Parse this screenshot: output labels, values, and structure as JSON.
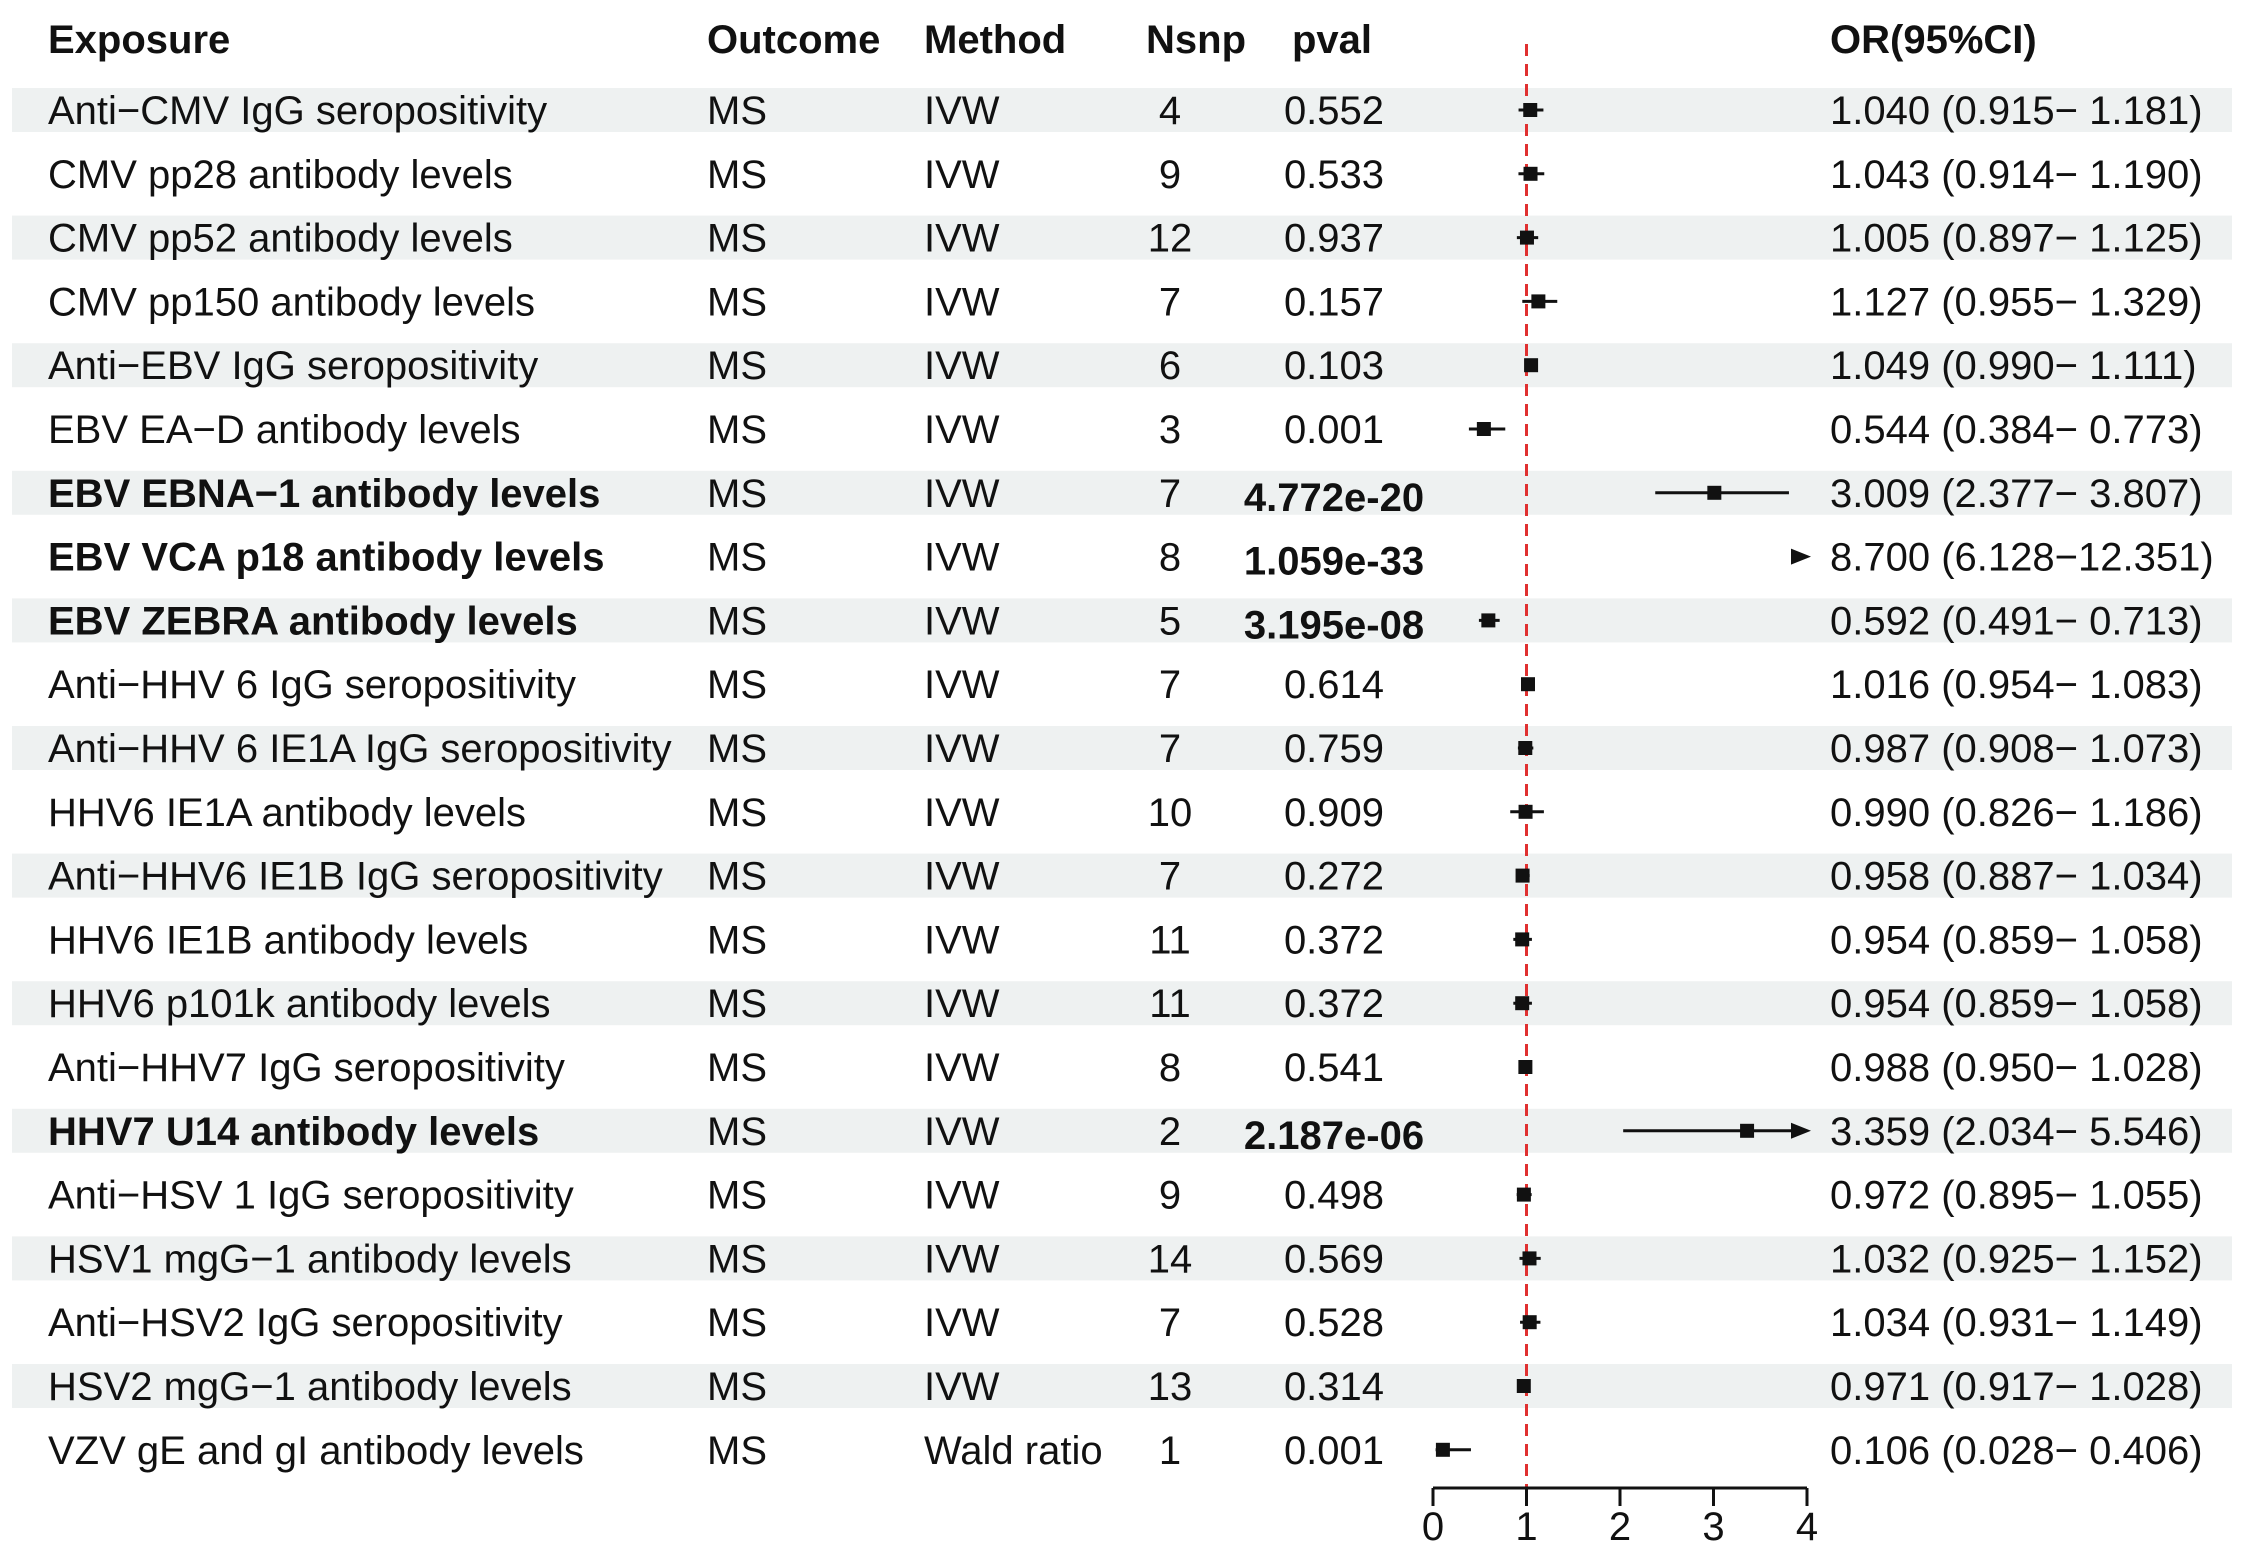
{
  "chart_data": {
    "type": "forest",
    "headers": {
      "exposure": "Exposure",
      "outcome": "Outcome",
      "method": "Method",
      "nsnp": "Nsnp",
      "pval": "pval",
      "or": "OR(95%CI)"
    },
    "reference_line": 1,
    "xlim": [
      0,
      4
    ],
    "x_ticks": [
      "0",
      "1",
      "2",
      "3",
      "4"
    ],
    "colors": {
      "stripe": "#eef1f1",
      "reference": "#e03030",
      "ink": "#111111"
    },
    "rows": [
      {
        "exposure": "Anti−CMV IgG seropositivity",
        "outcome": "MS",
        "method": "IVW",
        "nsnp": "4",
        "pval": "0.552",
        "bold": false,
        "or": 1.04,
        "lo": 0.915,
        "hi": 1.181,
        "or_text": "1.040 (0.915− 1.181)"
      },
      {
        "exposure": "CMV pp28 antibody levels",
        "outcome": "MS",
        "method": "IVW",
        "nsnp": "9",
        "pval": "0.533",
        "bold": false,
        "or": 1.043,
        "lo": 0.914,
        "hi": 1.19,
        "or_text": "1.043 (0.914− 1.190)"
      },
      {
        "exposure": "CMV pp52 antibody levels",
        "outcome": "MS",
        "method": "IVW",
        "nsnp": "12",
        "pval": "0.937",
        "bold": false,
        "or": 1.005,
        "lo": 0.897,
        "hi": 1.125,
        "or_text": "1.005 (0.897− 1.125)"
      },
      {
        "exposure": "CMV pp150 antibody levels",
        "outcome": "MS",
        "method": "IVW",
        "nsnp": "7",
        "pval": "0.157",
        "bold": false,
        "or": 1.127,
        "lo": 0.955,
        "hi": 1.329,
        "or_text": "1.127 (0.955− 1.329)"
      },
      {
        "exposure": "Anti−EBV IgG seropositivity",
        "outcome": "MS",
        "method": "IVW",
        "nsnp": "6",
        "pval": "0.103",
        "bold": false,
        "or": 1.049,
        "lo": 0.99,
        "hi": 1.111,
        "or_text": "1.049 (0.990− 1.111)"
      },
      {
        "exposure": "EBV EA−D antibody levels",
        "outcome": "MS",
        "method": "IVW",
        "nsnp": "3",
        "pval": "0.001",
        "bold": false,
        "or": 0.544,
        "lo": 0.384,
        "hi": 0.773,
        "or_text": "0.544 (0.384− 0.773)"
      },
      {
        "exposure": "EBV EBNA−1 antibody levels",
        "outcome": "MS",
        "method": "IVW",
        "nsnp": "7",
        "pval": "4.772e-20",
        "bold": true,
        "or": 3.009,
        "lo": 2.377,
        "hi": 3.807,
        "or_text": "3.009 (2.377− 3.807)"
      },
      {
        "exposure": "EBV VCA p18 antibody levels",
        "outcome": "MS",
        "method": "IVW",
        "nsnp": "8",
        "pval": "1.059e-33",
        "bold": true,
        "or": 8.7,
        "lo": 6.128,
        "hi": 12.351,
        "or_text": "8.700 (6.128−12.351)"
      },
      {
        "exposure": "EBV ZEBRA antibody levels",
        "outcome": "MS",
        "method": "IVW",
        "nsnp": "5",
        "pval": "3.195e-08",
        "bold": true,
        "or": 0.592,
        "lo": 0.491,
        "hi": 0.713,
        "or_text": "0.592 (0.491− 0.713)"
      },
      {
        "exposure": "Anti−HHV 6 IgG seropositivity",
        "outcome": "MS",
        "method": "IVW",
        "nsnp": "7",
        "pval": "0.614",
        "bold": false,
        "or": 1.016,
        "lo": 0.954,
        "hi": 1.083,
        "or_text": "1.016 (0.954− 1.083)"
      },
      {
        "exposure": "Anti−HHV 6 IE1A IgG seropositivity",
        "outcome": "MS",
        "method": "IVW",
        "nsnp": "7",
        "pval": "0.759",
        "bold": false,
        "or": 0.987,
        "lo": 0.908,
        "hi": 1.073,
        "or_text": "0.987 (0.908− 1.073)"
      },
      {
        "exposure": "HHV6 IE1A antibody levels",
        "outcome": "MS",
        "method": "IVW",
        "nsnp": "10",
        "pval": "0.909",
        "bold": false,
        "or": 0.99,
        "lo": 0.826,
        "hi": 1.186,
        "or_text": "0.990 (0.826− 1.186)"
      },
      {
        "exposure": "Anti−HHV6 IE1B IgG seropositivity",
        "outcome": "MS",
        "method": "IVW",
        "nsnp": "7",
        "pval": "0.272",
        "bold": false,
        "or": 0.958,
        "lo": 0.887,
        "hi": 1.034,
        "or_text": "0.958 (0.887− 1.034)"
      },
      {
        "exposure": "HHV6 IE1B antibody levels",
        "outcome": "MS",
        "method": "IVW",
        "nsnp": "11",
        "pval": "0.372",
        "bold": false,
        "or": 0.954,
        "lo": 0.859,
        "hi": 1.058,
        "or_text": "0.954 (0.859− 1.058)"
      },
      {
        "exposure": "HHV6 p101k antibody levels",
        "outcome": "MS",
        "method": "IVW",
        "nsnp": "11",
        "pval": "0.372",
        "bold": false,
        "or": 0.954,
        "lo": 0.859,
        "hi": 1.058,
        "or_text": "0.954 (0.859− 1.058)"
      },
      {
        "exposure": "Anti−HHV7 IgG seropositivity",
        "outcome": "MS",
        "method": "IVW",
        "nsnp": "8",
        "pval": "0.541",
        "bold": false,
        "or": 0.988,
        "lo": 0.95,
        "hi": 1.028,
        "or_text": "0.988 (0.950− 1.028)"
      },
      {
        "exposure": "HHV7 U14 antibody levels",
        "outcome": "MS",
        "method": "IVW",
        "nsnp": "2",
        "pval": "2.187e-06",
        "bold": true,
        "or": 3.359,
        "lo": 2.034,
        "hi": 5.546,
        "or_text": "3.359 (2.034− 5.546)"
      },
      {
        "exposure": "Anti−HSV 1 IgG seropositivity",
        "outcome": "MS",
        "method": "IVW",
        "nsnp": "9",
        "pval": "0.498",
        "bold": false,
        "or": 0.972,
        "lo": 0.895,
        "hi": 1.055,
        "or_text": "0.972 (0.895− 1.055)"
      },
      {
        "exposure": "HSV1 mgG−1 antibody levels",
        "outcome": "MS",
        "method": "IVW",
        "nsnp": "14",
        "pval": "0.569",
        "bold": false,
        "or": 1.032,
        "lo": 0.925,
        "hi": 1.152,
        "or_text": "1.032 (0.925− 1.152)"
      },
      {
        "exposure": "Anti−HSV2 IgG seropositivity",
        "outcome": "MS",
        "method": "IVW",
        "nsnp": "7",
        "pval": "0.528",
        "bold": false,
        "or": 1.034,
        "lo": 0.931,
        "hi": 1.149,
        "or_text": "1.034 (0.931− 1.149)"
      },
      {
        "exposure": "HSV2 mgG−1 antibody levels",
        "outcome": "MS",
        "method": "IVW",
        "nsnp": "13",
        "pval": "0.314",
        "bold": false,
        "or": 0.971,
        "lo": 0.917,
        "hi": 1.028,
        "or_text": "0.971 (0.917− 1.028)"
      },
      {
        "exposure": "VZV gE and gI antibody levels",
        "outcome": "MS",
        "method": "Wald ratio",
        "nsnp": "1",
        "pval": "0.001",
        "bold": false,
        "or": 0.106,
        "lo": 0.028,
        "hi": 0.406,
        "or_text": "0.106 (0.028− 0.406)"
      }
    ]
  }
}
